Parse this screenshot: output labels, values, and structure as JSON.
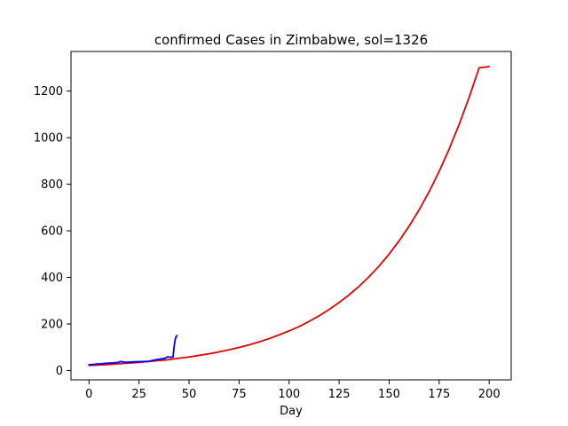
{
  "chart_data": {
    "type": "line",
    "title": "confirmed Cases in Zimbabwe, sol=1326",
    "xlabel": "Day",
    "ylabel": "",
    "xlim": [
      -9,
      211
    ],
    "ylim": [
      -40,
      1370
    ],
    "grid": false,
    "x_ticks": [
      0,
      25,
      50,
      75,
      100,
      125,
      150,
      175,
      200
    ],
    "y_ticks": [
      0,
      200,
      400,
      600,
      800,
      1000,
      1200
    ],
    "series": [
      {
        "color": "#0000ff",
        "x": [
          0,
          2,
          4,
          6,
          8,
          10,
          12,
          14,
          15,
          16,
          17,
          18,
          20,
          22,
          24,
          26,
          28,
          30,
          31,
          32,
          34,
          36,
          38,
          39,
          40,
          41,
          42,
          42.5,
          43,
          43.5,
          44
        ],
        "y": [
          25,
          26,
          28,
          29,
          31,
          32,
          33,
          34,
          36,
          39,
          37,
          35,
          36,
          37,
          38,
          38,
          39,
          39,
          42,
          44,
          47,
          50,
          53,
          58,
          58,
          57,
          58,
          100,
          130,
          145,
          150
        ]
      },
      {
        "color": "#e00000",
        "x": [
          0,
          5,
          10,
          15,
          20,
          25,
          30,
          35,
          40,
          45,
          50,
          55,
          60,
          65,
          70,
          75,
          80,
          85,
          90,
          95,
          100,
          105,
          110,
          115,
          120,
          125,
          130,
          135,
          140,
          145,
          150,
          155,
          160,
          165,
          170,
          175,
          180,
          185,
          190,
          195,
          200
        ],
        "y": [
          22,
          24,
          26,
          29,
          32,
          35,
          39,
          43,
          47,
          53,
          58,
          65,
          72,
          80,
          89,
          99,
          110,
          123,
          137,
          153,
          170,
          189,
          211,
          235,
          262,
          292,
          325,
          362,
          403,
          449,
          500,
          557,
          620,
          690,
          768,
          855,
          951,
          1057,
          1173,
          1300,
          1305
        ]
      }
    ]
  }
}
